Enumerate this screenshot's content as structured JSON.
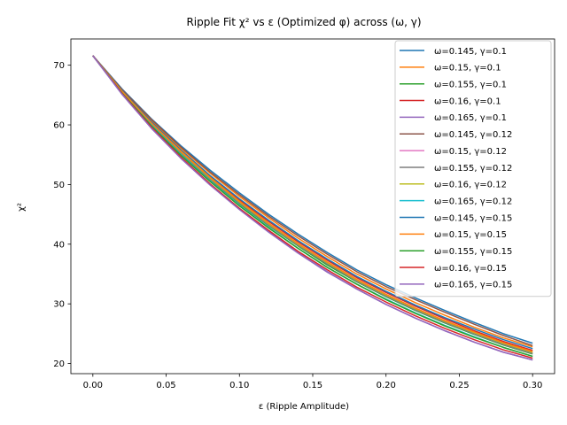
{
  "chart_data": {
    "type": "line",
    "title": "Ripple Fit χ² vs ε (Optimized φ) across (ω, γ)",
    "xlabel": "ε (Ripple Amplitude)",
    "ylabel": "χ²",
    "xlim": [
      -0.015,
      0.315
    ],
    "ylim": [
      18.3,
      74.4
    ],
    "xticks": [
      0.0,
      0.05,
      0.1,
      0.15,
      0.2,
      0.25,
      0.3
    ],
    "xtick_labels": [
      "0.00",
      "0.05",
      "0.10",
      "0.15",
      "0.20",
      "0.25",
      "0.30"
    ],
    "yticks": [
      20,
      30,
      40,
      50,
      60,
      70
    ],
    "ytick_labels": [
      "20",
      "30",
      "40",
      "50",
      "60",
      "70"
    ],
    "grid": false,
    "legend_position": "top-right",
    "x": [
      0.0,
      0.02,
      0.04,
      0.06,
      0.08,
      0.1,
      0.12,
      0.14,
      0.16,
      0.18,
      0.2,
      0.22,
      0.24,
      0.26,
      0.28,
      0.3
    ],
    "series": [
      {
        "name": "ω=0.145, γ=0.1",
        "color": "#1f77b4",
        "values": [
          71.6,
          66.0,
          61.0,
          56.5,
          52.4,
          48.6,
          45.0,
          41.7,
          38.6,
          35.7,
          33.2,
          31.0,
          28.9,
          26.9,
          25.0,
          23.4
        ]
      },
      {
        "name": "ω=0.15, γ=0.1",
        "color": "#ff7f0e",
        "values": [
          71.6,
          65.8,
          60.7,
          56.1,
          51.9,
          48.0,
          44.4,
          41.0,
          37.9,
          35.0,
          32.5,
          30.2,
          28.1,
          26.1,
          24.3,
          22.8
        ]
      },
      {
        "name": "ω=0.155, γ=0.1",
        "color": "#2ca02c",
        "values": [
          71.6,
          65.4,
          60.0,
          55.2,
          50.8,
          46.8,
          43.1,
          39.7,
          36.5,
          33.7,
          31.2,
          28.9,
          26.8,
          24.9,
          23.1,
          21.6
        ]
      },
      {
        "name": "ω=0.16, γ=0.1",
        "color": "#d62728",
        "values": [
          71.6,
          65.6,
          60.4,
          55.7,
          51.4,
          47.4,
          43.8,
          40.4,
          37.3,
          34.4,
          31.9,
          29.6,
          27.5,
          25.5,
          23.7,
          22.2
        ]
      },
      {
        "name": "ω=0.165, γ=0.1",
        "color": "#9467bd",
        "values": [
          71.6,
          65.1,
          59.5,
          54.5,
          50.0,
          45.9,
          42.1,
          38.6,
          35.4,
          32.5,
          29.9,
          27.6,
          25.5,
          23.6,
          21.9,
          20.6
        ]
      },
      {
        "name": "ω=0.145, γ=0.12",
        "color": "#8c564b",
        "values": [
          71.6,
          65.9,
          60.9,
          56.3,
          52.1,
          48.3,
          44.7,
          41.4,
          38.3,
          35.4,
          32.9,
          30.7,
          28.6,
          26.6,
          24.7,
          23.0
        ]
      },
      {
        "name": "ω=0.15, γ=0.12",
        "color": "#e377c2",
        "values": [
          71.6,
          65.5,
          60.2,
          55.4,
          51.0,
          47.0,
          43.3,
          39.9,
          36.8,
          33.9,
          31.4,
          29.1,
          27.0,
          25.0,
          23.2,
          21.7
        ]
      },
      {
        "name": "ω=0.155, γ=0.12",
        "color": "#7f7f7f",
        "values": [
          71.6,
          65.5,
          60.1,
          55.3,
          50.9,
          46.9,
          43.2,
          39.8,
          36.7,
          33.8,
          31.3,
          29.0,
          26.9,
          25.0,
          23.2,
          21.7
        ]
      },
      {
        "name": "ω=0.16, γ=0.12",
        "color": "#bcbd22",
        "values": [
          71.6,
          65.6,
          60.3,
          55.5,
          51.1,
          47.1,
          43.4,
          40.0,
          36.9,
          34.0,
          31.5,
          29.2,
          27.1,
          25.2,
          23.4,
          21.9
        ]
      },
      {
        "name": "ω=0.165, γ=0.12",
        "color": "#17becf",
        "values": [
          71.6,
          65.3,
          59.9,
          55.0,
          50.6,
          46.5,
          42.8,
          39.3,
          36.1,
          33.3,
          30.8,
          28.5,
          26.4,
          24.5,
          22.7,
          21.2
        ]
      },
      {
        "name": "ω=0.145, γ=0.15",
        "color": "#1f77b4",
        "values": [
          71.6,
          65.7,
          60.5,
          55.8,
          51.5,
          47.6,
          44.0,
          40.6,
          37.5,
          34.6,
          32.1,
          29.8,
          27.7,
          25.8,
          24.0,
          22.5
        ]
      },
      {
        "name": "ω=0.15, γ=0.15",
        "color": "#ff7f0e",
        "values": [
          71.6,
          65.6,
          60.3,
          55.6,
          51.2,
          47.2,
          43.5,
          40.1,
          37.0,
          34.1,
          31.6,
          29.3,
          27.2,
          25.3,
          23.5,
          22.0
        ]
      },
      {
        "name": "ω=0.155, γ=0.15",
        "color": "#2ca02c",
        "values": [
          71.6,
          65.3,
          59.8,
          54.9,
          50.5,
          46.4,
          42.7,
          39.3,
          36.1,
          33.3,
          30.7,
          28.4,
          26.3,
          24.4,
          22.7,
          21.2
        ]
      },
      {
        "name": "ω=0.16, γ=0.15",
        "color": "#d62728",
        "values": [
          71.6,
          65.2,
          59.6,
          54.6,
          50.1,
          46.0,
          42.3,
          38.8,
          35.7,
          32.8,
          30.3,
          28.0,
          25.9,
          24.0,
          22.3,
          20.9
        ]
      },
      {
        "name": "ω=0.165, γ=0.15",
        "color": "#9467bd",
        "values": [
          71.6,
          65.1,
          59.4,
          54.4,
          49.9,
          45.8,
          42.0,
          38.5,
          35.3,
          32.5,
          29.9,
          27.6,
          25.5,
          23.6,
          21.9,
          20.6
        ]
      }
    ]
  }
}
